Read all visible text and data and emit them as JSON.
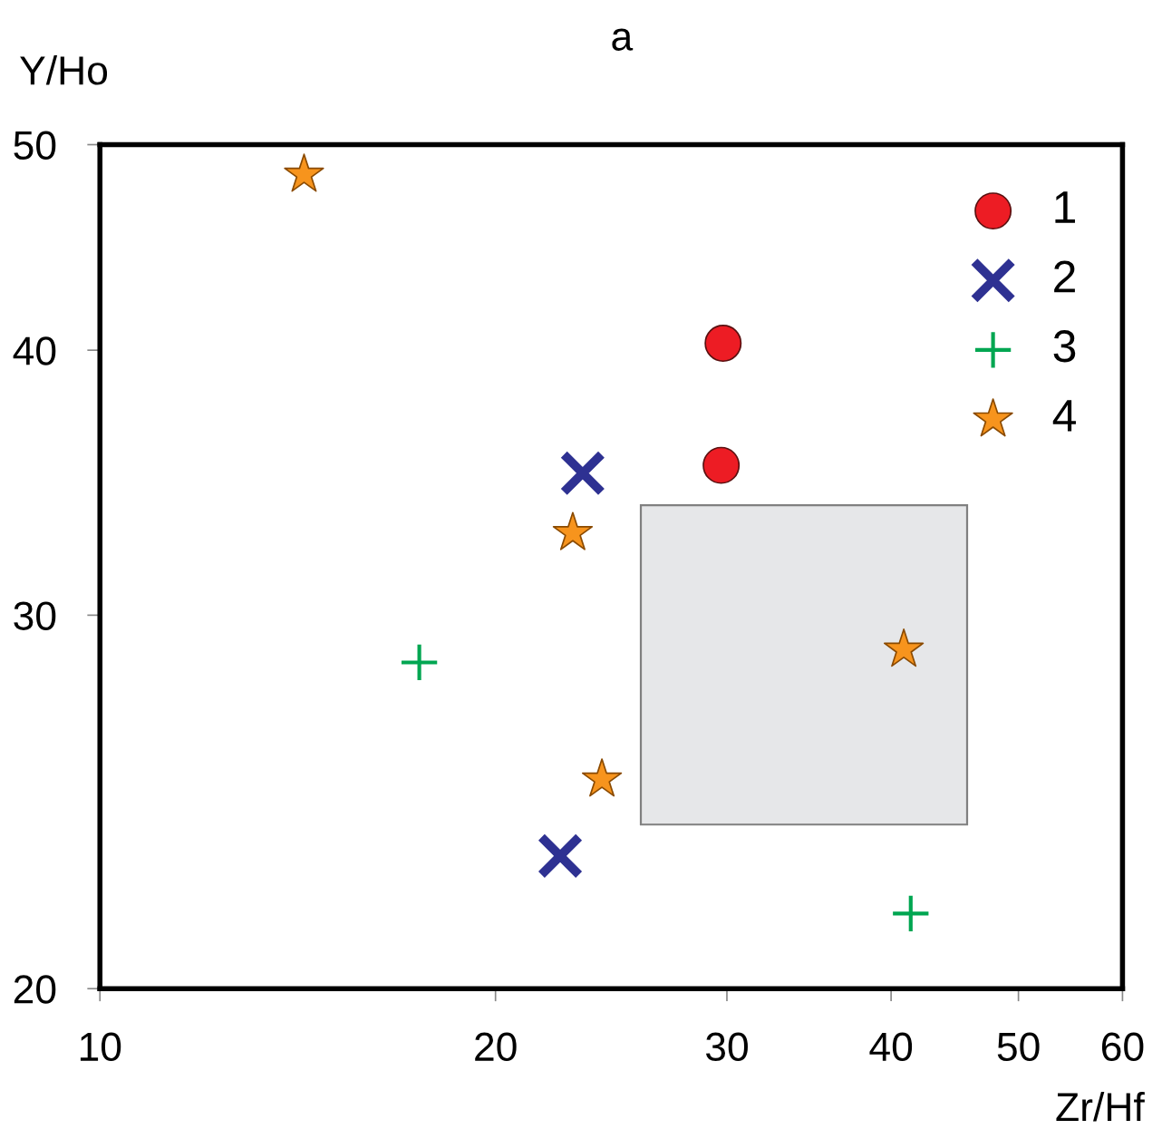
{
  "chart_data": {
    "type": "scatter",
    "title": "a",
    "xlabel": "Zr/Hf",
    "ylabel": "Y/Ho",
    "log": "xy",
    "xlim": [
      10,
      60
    ],
    "xticks": [
      10,
      20,
      30,
      40,
      50,
      60
    ],
    "ylim": [
      20,
      50
    ],
    "yticks": [
      20,
      30,
      40,
      50
    ],
    "grid": false,
    "legend": "top right",
    "series": [
      {
        "type": "area",
        "x": [
          25.8,
          45.7,
          45.7,
          25.8
        ],
        "values": [
          33.8,
          33.8,
          23.9,
          23.9
        ],
        "color": "#e6e7e9"
      },
      {
        "name": "1",
        "color": "#ed1c24",
        "marker": "circle",
        "x": [
          29.8,
          29.7
        ],
        "values": [
          40.3,
          35.3
        ]
      },
      {
        "name": "2",
        "color": "#2e3192",
        "marker": "cross",
        "x": [
          23.3,
          22.4
        ],
        "values": [
          35.0,
          23.1
        ]
      },
      {
        "name": "3",
        "color": "#00a651",
        "marker": "plus",
        "x": [
          17.5,
          41.4
        ],
        "values": [
          28.5,
          21.7
        ]
      },
      {
        "name": "4",
        "color": "#f7941d",
        "marker": "star",
        "x": [
          14.3,
          22.9,
          24.1,
          40.9
        ],
        "values": [
          48.4,
          32.8,
          25.1,
          28.9
        ]
      }
    ]
  }
}
